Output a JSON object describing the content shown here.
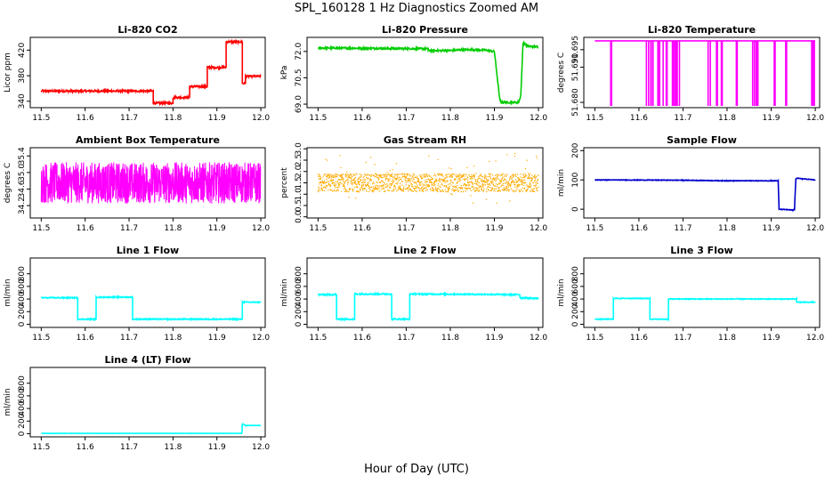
{
  "figure": {
    "title": "SPL_160128  1 Hz Diagnostics Zoomed AM",
    "xlabel": "Hour of Day (UTC)"
  },
  "chart_data": [
    {
      "type": "line",
      "title": "Li-820 CO2",
      "ylabel": "Licor ppm",
      "color": "#ff0000",
      "xlim": [
        11.475,
        12.01
      ],
      "ylim": [
        330,
        440
      ],
      "xticks": [
        "11.5",
        "11.6",
        "11.7",
        "11.8",
        "11.9",
        "12.0"
      ],
      "yticks": [
        340,
        380,
        420
      ],
      "noise": 1.5,
      "points": [
        [
          11.5,
          356
        ],
        [
          11.755,
          356
        ],
        [
          11.755,
          337
        ],
        [
          11.8,
          337
        ],
        [
          11.8,
          346
        ],
        [
          11.838,
          346
        ],
        [
          11.838,
          363
        ],
        [
          11.878,
          363
        ],
        [
          11.878,
          393
        ],
        [
          11.921,
          393
        ],
        [
          11.921,
          433
        ],
        [
          11.958,
          433
        ],
        [
          11.958,
          368
        ],
        [
          11.965,
          368
        ],
        [
          11.965,
          379
        ],
        [
          12.0,
          379
        ]
      ]
    },
    {
      "type": "line",
      "title": "Li-820 Pressure",
      "ylabel": "kPa",
      "color": "#00cc00",
      "xlim": [
        11.475,
        12.01
      ],
      "ylim": [
        68.8,
        72.8
      ],
      "xticks": [
        "11.5",
        "11.6",
        "11.7",
        "11.8",
        "11.9",
        "12.0"
      ],
      "yticks": [
        "69.0",
        "70.5",
        "72.0"
      ],
      "noise": 0.05,
      "points": [
        [
          11.5,
          72.2
        ],
        [
          11.75,
          72.15
        ],
        [
          11.75,
          72.05
        ],
        [
          11.8,
          72.05
        ],
        [
          11.83,
          72.1
        ],
        [
          11.88,
          72.08
        ],
        [
          11.9,
          72.0
        ],
        [
          11.912,
          69.3
        ],
        [
          11.915,
          69.1
        ],
        [
          11.955,
          69.1
        ],
        [
          11.96,
          69.5
        ],
        [
          11.965,
          72.5
        ],
        [
          11.975,
          72.3
        ],
        [
          12.0,
          72.25
        ]
      ]
    },
    {
      "type": "line",
      "title": "Li-820 Temperature",
      "ylabel": "degrees C",
      "color": "#ff00ff",
      "xlim": [
        11.475,
        12.01
      ],
      "ylim": [
        51.6785,
        51.6985
      ],
      "xticks": [
        "11.5",
        "11.6",
        "11.7",
        "11.8",
        "11.9",
        "12.0"
      ],
      "yticks": [
        "51.680",
        "51.690",
        "51.695"
      ],
      "baseline": 51.6975,
      "low": 51.679,
      "drops": [
        11.536,
        11.538,
        11.617,
        11.622,
        11.627,
        11.628,
        11.632,
        11.643,
        11.645,
        11.647,
        11.655,
        11.662,
        11.664,
        11.676,
        11.678,
        11.681,
        11.682,
        11.684,
        11.685,
        11.687,
        11.692,
        11.757,
        11.762,
        11.776,
        11.778,
        11.787,
        11.789,
        11.821,
        11.823,
        11.858,
        11.862,
        11.866,
        11.868,
        11.87,
        11.907,
        11.909,
        11.933,
        11.935,
        11.992,
        11.994,
        11.996,
        11.998
      ]
    },
    {
      "type": "line",
      "title": "Ambient Box Temperature",
      "ylabel": "degrees C",
      "color": "#ff00ff",
      "xlim": [
        11.475,
        12.01
      ],
      "ylim": [
        33.9,
        35.6
      ],
      "xticks": [
        "11.5",
        "11.6",
        "11.7",
        "11.8",
        "11.9",
        "12.0"
      ],
      "yticks": [
        "34.2",
        "34.6",
        "35.0",
        "35.4"
      ],
      "band": [
        34.25,
        35.25
      ]
    },
    {
      "type": "scatter",
      "title": "Gas Stream RH",
      "ylabel": "percent",
      "color": "#ffaa00",
      "xlim": [
        11.475,
        12.01
      ],
      "ylim": [
        -0.05,
        3.05
      ],
      "xticks": [
        "11.5",
        "11.6",
        "11.7",
        "11.8",
        "11.9",
        "12.0"
      ],
      "yticks": [
        "0.0",
        "0.5",
        "1.0",
        "1.5",
        "2.0",
        "2.5",
        "3.0"
      ],
      "band": [
        1.1,
        1.9
      ]
    },
    {
      "type": "line",
      "title": "Sample Flow",
      "ylabel": "ml/min",
      "color": "#0000cc",
      "xlim": [
        11.475,
        12.01
      ],
      "ylim": [
        -30,
        210
      ],
      "xticks": [
        "11.5",
        "11.6",
        "11.7",
        "11.8",
        "11.9",
        "12.0"
      ],
      "yticks": [
        0,
        100,
        200
      ],
      "noise": 1,
      "points": [
        [
          11.5,
          100
        ],
        [
          11.7,
          99
        ],
        [
          11.8,
          97
        ],
        [
          11.9,
          97
        ],
        [
          11.916,
          97
        ],
        [
          11.918,
          0
        ],
        [
          11.95,
          -3
        ],
        [
          11.953,
          0
        ],
        [
          11.956,
          106
        ],
        [
          11.97,
          104
        ],
        [
          12.0,
          100
        ]
      ]
    },
    {
      "type": "line",
      "title": "Line 1 Flow",
      "ylabel": "ml/min",
      "color": "#00ffff",
      "xlim": [
        11.475,
        12.01
      ],
      "ylim": [
        -50,
        1050
      ],
      "xticks": [
        "11.5",
        "11.6",
        "11.7",
        "11.8",
        "11.9",
        "12.0"
      ],
      "yticks": [
        0,
        200,
        400,
        600,
        800
      ],
      "noise": 8,
      "points": [
        [
          11.5,
          420
        ],
        [
          11.583,
          420
        ],
        [
          11.583,
          80
        ],
        [
          11.625,
          80
        ],
        [
          11.625,
          430
        ],
        [
          11.708,
          430
        ],
        [
          11.708,
          80
        ],
        [
          11.958,
          80
        ],
        [
          11.958,
          350
        ],
        [
          12.0,
          350
        ]
      ]
    },
    {
      "type": "line",
      "title": "Line 2 Flow",
      "ylabel": "ml/min",
      "color": "#00ffff",
      "xlim": [
        11.475,
        12.01
      ],
      "ylim": [
        -50,
        1050
      ],
      "xticks": [
        "11.5",
        "11.6",
        "11.7",
        "11.8",
        "11.9",
        "12.0"
      ],
      "yticks": [
        0,
        200,
        400,
        600,
        800
      ],
      "noise": 10,
      "points": [
        [
          11.5,
          470
        ],
        [
          11.542,
          470
        ],
        [
          11.542,
          80
        ],
        [
          11.583,
          80
        ],
        [
          11.583,
          480
        ],
        [
          11.667,
          480
        ],
        [
          11.667,
          80
        ],
        [
          11.708,
          80
        ],
        [
          11.708,
          480
        ],
        [
          11.958,
          470
        ],
        [
          11.958,
          420
        ],
        [
          12.0,
          410
        ]
      ]
    },
    {
      "type": "line",
      "title": "Line 3 Flow",
      "ylabel": "ml/min",
      "color": "#00ffff",
      "xlim": [
        11.475,
        12.01
      ],
      "ylim": [
        -50,
        1050
      ],
      "xticks": [
        "11.5",
        "11.6",
        "11.7",
        "11.8",
        "11.9",
        "12.0"
      ],
      "yticks": [
        0,
        200,
        400,
        600,
        800
      ],
      "noise": 6,
      "points": [
        [
          11.5,
          80
        ],
        [
          11.542,
          80
        ],
        [
          11.542,
          410
        ],
        [
          11.625,
          410
        ],
        [
          11.625,
          80
        ],
        [
          11.667,
          80
        ],
        [
          11.667,
          400
        ],
        [
          11.958,
          400
        ],
        [
          11.958,
          350
        ],
        [
          12.0,
          350
        ]
      ]
    },
    {
      "type": "line",
      "title": "Line 4 (LT) Flow",
      "ylabel": "ml/min",
      "color": "#00ffff",
      "xlim": [
        11.475,
        12.01
      ],
      "ylim": [
        -50,
        1050
      ],
      "xticks": [
        "11.5",
        "11.6",
        "11.7",
        "11.8",
        "11.9",
        "12.0"
      ],
      "yticks": [
        0,
        200,
        400,
        600,
        800
      ],
      "noise": 2,
      "points": [
        [
          11.5,
          5
        ],
        [
          11.957,
          5
        ],
        [
          11.958,
          160
        ],
        [
          11.965,
          130
        ],
        [
          12.0,
          130
        ]
      ]
    }
  ]
}
